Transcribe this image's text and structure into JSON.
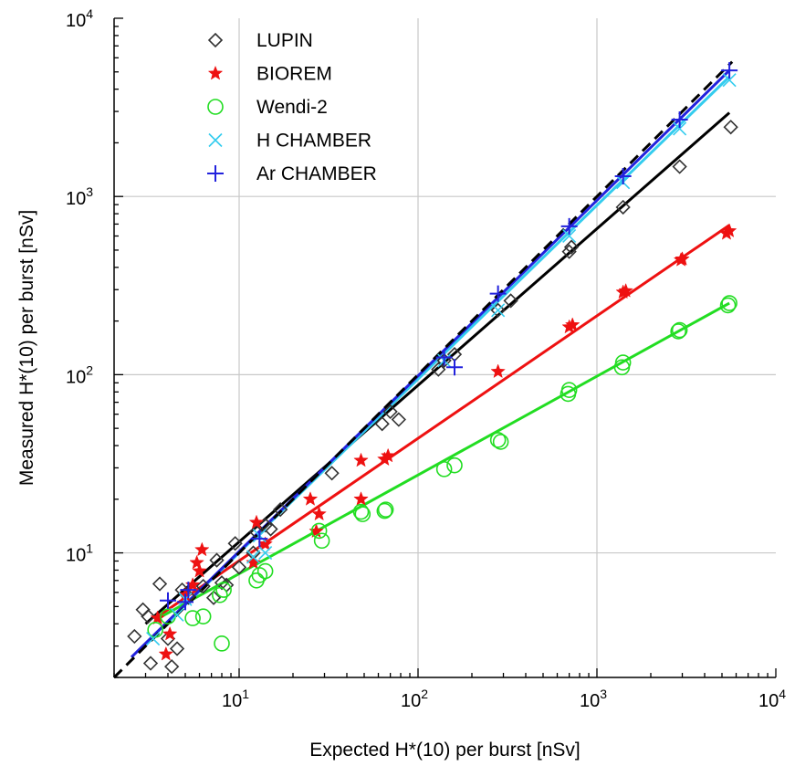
{
  "chart_data": {
    "type": "scatter",
    "xlabel": "Expected H*(10) per burst [nSv]",
    "ylabel": "Measured H*(10) per burst [nSv]",
    "xscale": "log",
    "yscale": "log",
    "xlim": [
      2,
      10000
    ],
    "ylim": [
      2,
      10000
    ],
    "grid": true,
    "legend_position": "top-left",
    "x_ticks": [
      {
        "value": 10,
        "base": "10",
        "exp": "1"
      },
      {
        "value": 100,
        "base": "10",
        "exp": "2"
      },
      {
        "value": 1000,
        "base": "10",
        "exp": "3"
      },
      {
        "value": 10000,
        "base": "10",
        "exp": "4"
      }
    ],
    "y_ticks": [
      {
        "value": 10,
        "base": "10",
        "exp": "1"
      },
      {
        "value": 100,
        "base": "10",
        "exp": "2"
      },
      {
        "value": 1000,
        "base": "10",
        "exp": "3"
      },
      {
        "value": 10000,
        "base": "10",
        "exp": "4"
      }
    ],
    "identity_line": {
      "style": "dashed",
      "color": "#000000",
      "from": [
        2,
        2
      ],
      "to": [
        5700,
        5700
      ]
    },
    "series": [
      {
        "name": "LUPIN",
        "marker": "diamond",
        "color": "#333333",
        "fit": {
          "color": "#000000",
          "from": [
            3,
            4.0
          ],
          "to": [
            5500,
            2950
          ]
        },
        "points": [
          [
            2.6,
            3.4
          ],
          [
            2.9,
            4.8
          ],
          [
            3.1,
            4.4
          ],
          [
            3.2,
            2.4
          ],
          [
            3.6,
            6.7
          ],
          [
            4.0,
            3.3
          ],
          [
            4.2,
            2.3
          ],
          [
            4.5,
            2.9
          ],
          [
            4.8,
            6.2
          ],
          [
            5.2,
            5.7
          ],
          [
            6.3,
            6.5
          ],
          [
            7.2,
            5.6
          ],
          [
            7.5,
            9.1
          ],
          [
            8.0,
            6.8
          ],
          [
            8.5,
            6.6
          ],
          [
            9.5,
            11.3
          ],
          [
            10,
            8.3
          ],
          [
            12,
            10.0
          ],
          [
            12.5,
            13.1
          ],
          [
            14,
            14.3
          ],
          [
            15,
            13.6
          ],
          [
            17,
            17.5
          ],
          [
            33,
            28.0
          ],
          [
            63,
            53.0
          ],
          [
            70,
            62.0
          ],
          [
            78,
            56.0
          ],
          [
            130,
            107
          ],
          [
            140,
            120
          ],
          [
            160,
            130
          ],
          [
            280,
            230
          ],
          [
            330,
            260
          ],
          [
            700,
            490
          ],
          [
            720,
            520
          ],
          [
            1400,
            870
          ],
          [
            2900,
            1470
          ],
          [
            5600,
            2450
          ]
        ]
      },
      {
        "name": "BIOREM",
        "marker": "star",
        "color": "#ee1111",
        "fit": {
          "color": "#ee1111",
          "from": [
            3.4,
            4.3
          ],
          "to": [
            5500,
            690
          ]
        },
        "points": [
          [
            3.5,
            4.3
          ],
          [
            3.9,
            2.7
          ],
          [
            4.1,
            3.5
          ],
          [
            5.0,
            5.8
          ],
          [
            5.5,
            6.6
          ],
          [
            5.8,
            8.8
          ],
          [
            6.0,
            7.9
          ],
          [
            6.2,
            10.4
          ],
          [
            12,
            8.8
          ],
          [
            12.5,
            14.8
          ],
          [
            14,
            11.2
          ],
          [
            25,
            20.0
          ],
          [
            27,
            13.2
          ],
          [
            28,
            16.5
          ],
          [
            48,
            33.0
          ],
          [
            48,
            20.0
          ],
          [
            65,
            33.5
          ],
          [
            68,
            35.0
          ],
          [
            280,
            104
          ],
          [
            700,
            185
          ],
          [
            730,
            190
          ],
          [
            1400,
            290
          ],
          [
            1450,
            295
          ],
          [
            2950,
            440
          ],
          [
            3000,
            445
          ],
          [
            5300,
            620
          ],
          [
            5500,
            640
          ]
        ]
      },
      {
        "name": "Wendi-2",
        "marker": "circle",
        "color": "#22dd22",
        "fit": {
          "color": "#22dd22",
          "from": [
            3.4,
            4.2
          ],
          "to": [
            5500,
            252
          ]
        },
        "points": [
          [
            3.4,
            3.7
          ],
          [
            4.0,
            4.4
          ],
          [
            5.5,
            4.3
          ],
          [
            6.3,
            4.4
          ],
          [
            7.8,
            5.8
          ],
          [
            8.0,
            3.1
          ],
          [
            8.2,
            6.2
          ],
          [
            12.5,
            7.0
          ],
          [
            13,
            7.5
          ],
          [
            14,
            7.9
          ],
          [
            28,
            13.3
          ],
          [
            29,
            11.7
          ],
          [
            48,
            17.0
          ],
          [
            49,
            16.5
          ],
          [
            65,
            17.2
          ],
          [
            66,
            17.5
          ],
          [
            140,
            29.5
          ],
          [
            160,
            31.0
          ],
          [
            280,
            43.0
          ],
          [
            290,
            42.0
          ],
          [
            690,
            78.0
          ],
          [
            700,
            82.0
          ],
          [
            1380,
            110
          ],
          [
            1400,
            117
          ],
          [
            2850,
            175
          ],
          [
            2900,
            178
          ],
          [
            5400,
            245
          ],
          [
            5500,
            252
          ]
        ]
      },
      {
        "name": "H CHAMBER",
        "marker": "x",
        "color": "#33ccee",
        "fit": {
          "color": "#33ccee",
          "from": [
            3,
            3.1
          ],
          "to": [
            5500,
            4700
          ]
        },
        "points": [
          [
            3.3,
            3.3
          ],
          [
            4.5,
            4.5
          ],
          [
            5.0,
            5.5
          ],
          [
            12,
            9.5
          ],
          [
            13,
            12.5
          ],
          [
            14,
            10.0
          ],
          [
            140,
            120
          ],
          [
            280,
            230
          ],
          [
            700,
            600
          ],
          [
            1400,
            1200
          ],
          [
            2900,
            2400
          ],
          [
            5500,
            4500
          ]
        ]
      },
      {
        "name": "Ar CHAMBER",
        "marker": "plus",
        "color": "#2222dd",
        "fit": {
          "color": "#2222dd",
          "from": [
            2.5,
            2.6
          ],
          "to": [
            5500,
            5100
          ]
        },
        "points": [
          [
            4.0,
            5.4
          ],
          [
            5.0,
            5.3
          ],
          [
            5.2,
            6.2
          ],
          [
            13,
            12.0
          ],
          [
            140,
            125
          ],
          [
            160,
            110
          ],
          [
            280,
            285
          ],
          [
            700,
            680
          ],
          [
            1400,
            1300
          ],
          [
            2900,
            2700
          ],
          [
            5500,
            5100
          ]
        ]
      }
    ]
  }
}
